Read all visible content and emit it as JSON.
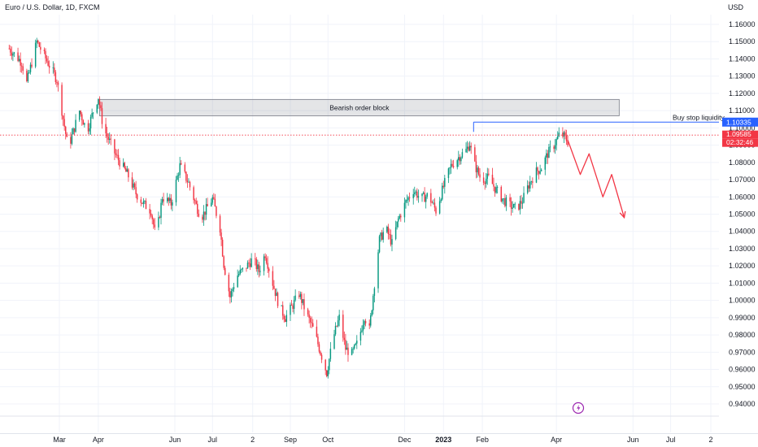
{
  "header": {
    "symbol_title": "Euro / U.S. Dollar, 1D, FXCM",
    "currency": "USD"
  },
  "chart_data": {
    "type": "candlestick",
    "instrument": "Euro / U.S. Dollar",
    "timeframe": "1D",
    "source": "FXCM",
    "y_axis": {
      "unit": "USD",
      "range": [
        0.935,
        1.165
      ],
      "ticks": [
        "1.16000",
        "1.15000",
        "1.14000",
        "1.13000",
        "1.12000",
        "1.11000",
        "1.10000",
        "1.09000",
        "1.08000",
        "1.07000",
        "1.06000",
        "1.05000",
        "1.04000",
        "1.03000",
        "1.02000",
        "1.01000",
        "1.00000",
        "0.99000",
        "0.98000",
        "0.97000",
        "0.96000",
        "0.95000",
        "0.94000"
      ]
    },
    "x_axis": {
      "ticks": [
        {
          "label": "Mar",
          "day": 40,
          "bold": false
        },
        {
          "label": "Apr",
          "day": 71,
          "bold": false
        },
        {
          "label": "Jun",
          "day": 132,
          "bold": false
        },
        {
          "label": "Jul",
          "day": 162,
          "bold": false
        },
        {
          "label": "2",
          "day": 194,
          "bold": false
        },
        {
          "label": "Sep",
          "day": 224,
          "bold": false
        },
        {
          "label": "Oct",
          "day": 254,
          "bold": false
        },
        {
          "label": "Dec",
          "day": 315,
          "bold": false
        },
        {
          "label": "2023",
          "day": 346,
          "bold": true
        },
        {
          "label": "Feb",
          "day": 377,
          "bold": false
        },
        {
          "label": "Apr",
          "day": 436,
          "bold": false
        },
        {
          "label": "Jun",
          "day": 497,
          "bold": false
        },
        {
          "label": "Jul",
          "day": 527,
          "bold": false
        },
        {
          "label": "2",
          "day": 559,
          "bold": false
        }
      ]
    },
    "price_path": [
      [
        0,
        1.146
      ],
      [
        10,
        1.138
      ],
      [
        14,
        1.126
      ],
      [
        22,
        1.15
      ],
      [
        30,
        1.139
      ],
      [
        38,
        1.128
      ],
      [
        44,
        1.101
      ],
      [
        47,
        1.088
      ],
      [
        56,
        1.11
      ],
      [
        62,
        1.098
      ],
      [
        68,
        1.112
      ],
      [
        71,
        1.118
      ],
      [
        75,
        1.1
      ],
      [
        85,
        1.084
      ],
      [
        95,
        1.072
      ],
      [
        101,
        1.062
      ],
      [
        107,
        1.056
      ],
      [
        113,
        1.052
      ],
      [
        117,
        1.036
      ],
      [
        122,
        1.06
      ],
      [
        129,
        1.056
      ],
      [
        136,
        1.078
      ],
      [
        143,
        1.068
      ],
      [
        149,
        1.055
      ],
      [
        153,
        1.048
      ],
      [
        162,
        1.059
      ],
      [
        168,
        1.042
      ],
      [
        171,
        1.021
      ],
      [
        176,
        1.002
      ],
      [
        181,
        1.014
      ],
      [
        187,
        1.018
      ],
      [
        194,
        1.024
      ],
      [
        199,
        1.017
      ],
      [
        204,
        1.027
      ],
      [
        210,
        1.01
      ],
      [
        215,
        0.997
      ],
      [
        220,
        0.99
      ],
      [
        225,
        0.996
      ],
      [
        231,
        1.004
      ],
      [
        237,
        0.992
      ],
      [
        243,
        0.982
      ],
      [
        248,
        0.97
      ],
      [
        253,
        0.958
      ],
      [
        258,
        0.978
      ],
      [
        263,
        0.99
      ],
      [
        268,
        0.972
      ],
      [
        273,
        0.969
      ],
      [
        278,
        0.976
      ],
      [
        283,
        0.991
      ],
      [
        287,
        0.983
      ],
      [
        291,
        1.01
      ],
      [
        295,
        1.035
      ],
      [
        300,
        1.042
      ],
      [
        305,
        1.033
      ],
      [
        310,
        1.047
      ],
      [
        316,
        1.057
      ],
      [
        322,
        1.064
      ],
      [
        328,
        1.059
      ],
      [
        334,
        1.061
      ],
      [
        340,
        1.052
      ],
      [
        346,
        1.066
      ],
      [
        352,
        1.078
      ],
      [
        358,
        1.083
      ],
      [
        364,
        1.087
      ],
      [
        367,
        1.091
      ],
      [
        370,
        1.08
      ],
      [
        376,
        1.07
      ],
      [
        382,
        1.071
      ],
      [
        387,
        1.065
      ],
      [
        394,
        1.058
      ],
      [
        399,
        1.055
      ],
      [
        404,
        1.053
      ],
      [
        409,
        1.058
      ],
      [
        414,
        1.067
      ],
      [
        419,
        1.074
      ],
      [
        424,
        1.077
      ],
      [
        429,
        1.085
      ],
      [
        434,
        1.09
      ],
      [
        439,
        1.097
      ],
      [
        442,
        1.095
      ],
      [
        445,
        1.092
      ]
    ],
    "projection": [
      [
        445,
        1.093
      ],
      [
        455,
        1.073
      ],
      [
        462,
        1.085
      ],
      [
        473,
        1.06
      ],
      [
        480,
        1.073
      ],
      [
        490,
        1.048
      ]
    ],
    "annotations": {
      "order_block": {
        "label": "Bearish order block",
        "day_start": 72,
        "day_end": 486,
        "price_top": 1.1165,
        "price_bottom": 1.107
      },
      "liquidity_line": {
        "label": "Buy stop liquidity",
        "day_start": 370,
        "price": 1.10335
      },
      "current_price": {
        "price": 1.09585
      }
    },
    "price_tags": [
      {
        "label": "1.10335",
        "price": 1.10335,
        "color": "#2962ff"
      },
      {
        "label": "1.09585",
        "price": 1.09585,
        "color": "#f23645"
      },
      {
        "label": "02:32:46",
        "price": 1.09585,
        "color": "#f23645"
      }
    ],
    "colors": {
      "up": "#089981",
      "down": "#f23645",
      "projection": "#f23645",
      "liquidity": "#2962ff",
      "grid": "#f0f3fa"
    }
  }
}
